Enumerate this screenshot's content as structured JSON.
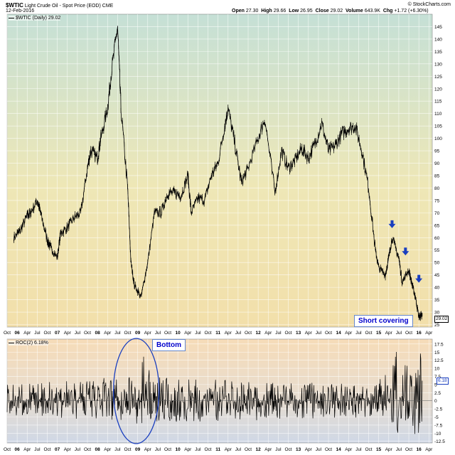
{
  "header": {
    "symbol": "$WTIC",
    "name": "Light Crude Oil - Spot Price (EOD) CME",
    "date": "12-Feb-2016",
    "source": "© StockCharts.com",
    "open_label": "Open",
    "open": "27.30",
    "high_label": "High",
    "high": "29.66",
    "low_label": "Low",
    "low": "26.95",
    "close_label": "Close",
    "close": "29.02",
    "volume_label": "Volume",
    "volume": "643.9K",
    "chg_label": "Chg",
    "chg": "+1.72 (+6.30%)"
  },
  "price_panel": {
    "legend": "$WTIC (Daily) 29.02",
    "last_value": "29.02"
  },
  "roc_panel": {
    "legend": "ROC(2) 6.18%",
    "last_value": "6.18"
  },
  "annotations": {
    "short_covering": "Short covering",
    "bottom": "Bottom"
  },
  "colors": {
    "arrow": "#1a3fbf",
    "ellipse": "#1a3fbf",
    "line": "#000000",
    "price_bg_top": "#c5e0d6",
    "price_bg_bottom": "#f2dfaa",
    "roc_bg_top": "#f6dcb8",
    "roc_bg_bottom": "#cfd8e6"
  },
  "chart_data": [
    {
      "type": "line",
      "title": "$WTIC (Daily) 29.02",
      "series": [
        {
          "name": "$WTIC",
          "x": [
            "2005-12",
            "2006-02",
            "2006-04",
            "2006-05",
            "2006-07",
            "2006-08",
            "2006-10",
            "2006-11",
            "2007-01",
            "2007-02",
            "2007-04",
            "2007-06",
            "2007-08",
            "2007-10",
            "2007-11",
            "2008-01",
            "2008-02",
            "2008-04",
            "2008-05",
            "2008-07",
            "2008-08",
            "2008-10",
            "2008-11",
            "2008-12",
            "2009-02",
            "2009-04",
            "2009-06",
            "2009-08",
            "2009-10",
            "2009-12",
            "2010-02",
            "2010-04",
            "2010-05",
            "2010-07",
            "2010-09",
            "2010-11",
            "2011-01",
            "2011-03",
            "2011-04",
            "2011-06",
            "2011-08",
            "2011-10",
            "2012-01",
            "2012-03",
            "2012-06",
            "2012-08",
            "2012-10",
            "2012-12",
            "2013-02",
            "2013-04",
            "2013-06",
            "2013-08",
            "2013-10",
            "2013-12",
            "2014-02",
            "2014-04",
            "2014-06",
            "2014-08",
            "2014-10",
            "2014-12",
            "2015-01",
            "2015-03",
            "2015-04",
            "2015-05",
            "2015-07",
            "2015-08",
            "2015-10",
            "2015-11",
            "2015-12",
            "2016-01",
            "2016-02"
          ],
          "values": [
            60,
            63,
            69,
            70,
            75,
            70,
            59,
            56,
            52,
            62,
            64,
            68,
            70,
            88,
            95,
            92,
            100,
            112,
            125,
            145,
            112,
            80,
            50,
            41,
            36,
            50,
            70,
            70,
            78,
            78,
            77,
            85,
            70,
            76,
            75,
            85,
            90,
            105,
            112,
            98,
            82,
            88,
            100,
            108,
            78,
            95,
            88,
            91,
            96,
            92,
            98,
            106,
            95,
            97,
            102,
            104,
            105,
            95,
            80,
            55,
            48,
            45,
            52,
            60,
            52,
            42,
            47,
            41,
            36,
            28,
            29
          ]
        }
      ],
      "xlabel": "",
      "ylabel": "",
      "xlim": [
        "2005-10",
        "2016-05"
      ],
      "ylim": [
        24,
        150
      ],
      "y_ticks": [
        25,
        30,
        35,
        40,
        45,
        50,
        55,
        60,
        65,
        70,
        75,
        80,
        85,
        90,
        95,
        100,
        105,
        110,
        115,
        120,
        125,
        130,
        135,
        140,
        145
      ],
      "x_tick_labels": [
        "Oct",
        "06",
        "Apr",
        "Jul",
        "Oct",
        "07",
        "Apr",
        "Jul",
        "Oct",
        "08",
        "Apr",
        "Jul",
        "Oct",
        "09",
        "Apr",
        "Jul",
        "Oct",
        "10",
        "Apr",
        "Jul",
        "Oct",
        "11",
        "Apr",
        "Jul",
        "Oct",
        "12",
        "Apr",
        "Jul",
        "Oct",
        "13",
        "Apr",
        "Jul",
        "Oct",
        "14",
        "Apr",
        "Jul",
        "Oct",
        "15",
        "Apr",
        "Jul",
        "Oct",
        "16",
        "Apr"
      ],
      "annotations": [
        {
          "type": "arrow-down",
          "x": "2015-05",
          "y": 65
        },
        {
          "type": "arrow-down",
          "x": "2015-09",
          "y": 54
        },
        {
          "type": "arrow-down",
          "x": "2016-01",
          "y": 43
        },
        {
          "type": "label",
          "text": "Short covering",
          "x": "2015-06",
          "y": 31
        }
      ],
      "grid": true
    },
    {
      "type": "line",
      "title": "ROC(2) 6.18%",
      "series": [
        {
          "name": "ROC(2)",
          "x": [
            "2005-10",
            "2008-09",
            "2009-01",
            "2009-06",
            "2014-12",
            "2015-06",
            "2015-12",
            "2016-02"
          ],
          "envelope_high": [
            5,
            7.5,
            17,
            7.5,
            5,
            16,
            16,
            14
          ],
          "envelope_low": [
            -5,
            -6,
            -12,
            -7,
            -5,
            -10,
            -12,
            -11.5
          ],
          "last": 6.18
        }
      ],
      "xlim": [
        "2005-10",
        "2016-05"
      ],
      "ylim": [
        -13,
        19
      ],
      "y_ticks": [
        -12.5,
        -10,
        -7.5,
        -5,
        -2.5,
        0,
        2.5,
        5,
        7.5,
        10,
        12.5,
        15,
        17.5
      ],
      "x_tick_labels": [
        "Oct",
        "06",
        "Apr",
        "Jul",
        "Oct",
        "07",
        "Apr",
        "Jul",
        "Oct",
        "08",
        "Apr",
        "Jul",
        "Oct",
        "09",
        "Apr",
        "Jul",
        "Oct",
        "10",
        "Apr",
        "Jul",
        "Oct",
        "11",
        "Apr",
        "Jul",
        "Oct",
        "12",
        "Apr",
        "Jul",
        "Oct",
        "13",
        "Apr",
        "Jul",
        "Oct",
        "14",
        "Apr",
        "Jul",
        "Oct",
        "15",
        "Apr",
        "Jul",
        "Oct",
        "16",
        "Apr"
      ],
      "annotations": [
        {
          "type": "ellipse",
          "x": "2009-01",
          "label": "Bottom"
        }
      ],
      "grid": true
    }
  ]
}
